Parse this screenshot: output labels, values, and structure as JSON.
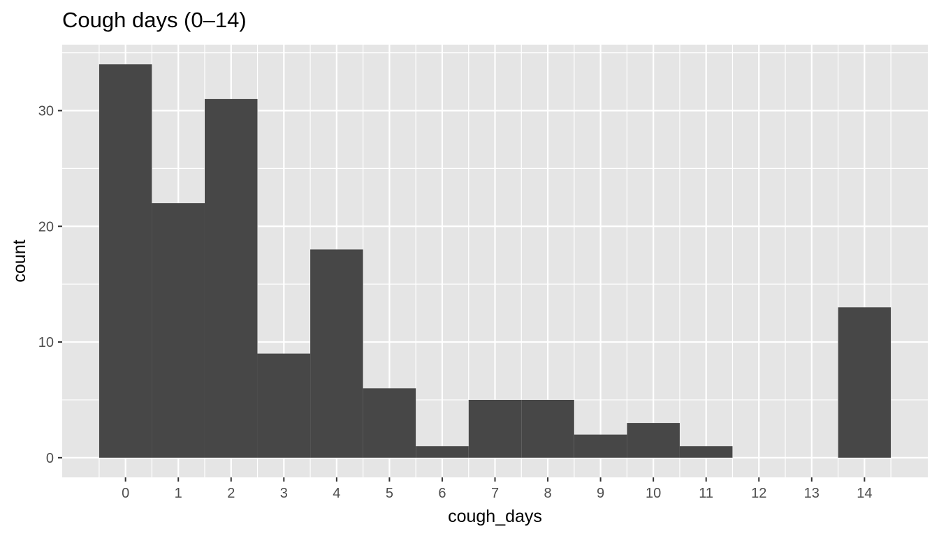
{
  "chart_data": {
    "type": "bar",
    "title": "Cough days (0–14)",
    "xlabel": "cough_days",
    "ylabel": "count",
    "categories": [
      "0",
      "1",
      "2",
      "3",
      "4",
      "5",
      "6",
      "7",
      "8",
      "9",
      "10",
      "11",
      "12",
      "13",
      "14"
    ],
    "values": [
      34,
      22,
      31,
      9,
      18,
      6,
      1,
      5,
      5,
      2,
      3,
      1,
      0,
      0,
      13
    ],
    "x": [
      0,
      1,
      2,
      3,
      4,
      5,
      6,
      7,
      8,
      9,
      10,
      11,
      12,
      13,
      14
    ],
    "xlim": [
      -1.2,
      15.2
    ],
    "ylim": [
      -1.7,
      35.7
    ],
    "y_ticks": [
      0,
      10,
      20,
      30
    ],
    "grid": true,
    "legend": "none",
    "colors": {
      "panel_background": "#e5e5e5",
      "grid": "#ffffff",
      "bar_fill": "#474747",
      "tick_text": "#4d4d4d",
      "tick_mark": "#333333"
    }
  }
}
